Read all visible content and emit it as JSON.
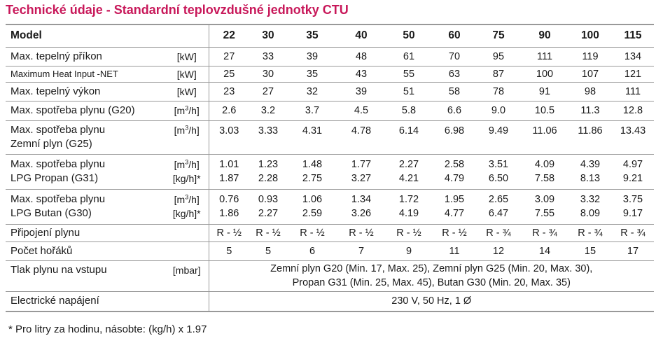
{
  "title": "Technické údaje - Standardní teplovzdušné jednotky CTU",
  "header": {
    "label": "Model",
    "models": [
      "22",
      "30",
      "35",
      "40",
      "50",
      "60",
      "75",
      "90",
      "100",
      "115"
    ]
  },
  "rows": [
    {
      "label": "Max. tepelný příkon",
      "unit": "[kW]",
      "values": [
        "27",
        "33",
        "39",
        "48",
        "61",
        "70",
        "95",
        "111",
        "119",
        "134"
      ]
    },
    {
      "label": "Maximum Heat Input -NET",
      "unit": "[kW]",
      "values": [
        "25",
        "30",
        "35",
        "43",
        "55",
        "63",
        "87",
        "100",
        "107",
        "121"
      ]
    },
    {
      "label": "Max. tepelný výkon",
      "unit": "[kW]",
      "values": [
        "23",
        "27",
        "32",
        "39",
        "51",
        "58",
        "78",
        "91",
        "98",
        "111"
      ]
    },
    {
      "label": "Max. spotřeba plynu (G20)",
      "unit_pre": "[m",
      "unit_sup": "3",
      "unit_post": "/h]",
      "values": [
        "2.6",
        "3.2",
        "3.7",
        "4.5",
        "5.8",
        "6.6",
        "9.0",
        "10.5",
        "11.3",
        "12.8"
      ]
    },
    {
      "label_line1": "Max. spotřeba plynu",
      "label_line2": "Zemní plyn (G25)",
      "unit_pre": "[m",
      "unit_sup": "3",
      "unit_post": "/h]",
      "values": [
        "3.03",
        "3.33",
        "4.31",
        "4.78",
        "6.14",
        "6.98",
        "9.49",
        "11.06",
        "11.86",
        "13.43"
      ]
    },
    {
      "label_line1": "Max. spotřeba plynu",
      "label_line2": "LPG Propan (G31)",
      "unit_pre": "[m",
      "unit_sup": "3",
      "unit_post": "/h]",
      "unit2": "[kg/h]*",
      "values": [
        "1.01",
        "1.23",
        "1.48",
        "1.77",
        "2.27",
        "2.58",
        "3.51",
        "4.09",
        "4.39",
        "4.97"
      ],
      "values2": [
        "1.87",
        "2.28",
        "2.75",
        "3.27",
        "4.21",
        "4.79",
        "6.50",
        "7.58",
        "8.13",
        "9.21"
      ]
    },
    {
      "label_line1": "Max. spotřeba plynu",
      "label_line2": "LPG Butan (G30)",
      "unit_pre": "[m",
      "unit_sup": "3",
      "unit_post": "/h]",
      "unit2": "[kg/h]*",
      "values": [
        "0.76",
        "0.93",
        "1.06",
        "1.34",
        "1.72",
        "1.95",
        "2.65",
        "3.09",
        "3.32",
        "3.75"
      ],
      "values2": [
        "1.86",
        "2.27",
        "2.59",
        "3.26",
        "4.19",
        "4.77",
        "6.47",
        "7.55",
        "8.09",
        "9.17"
      ]
    },
    {
      "label": "Připojení plynu",
      "unit": "",
      "values": [
        "R - ½",
        "R - ½",
        "R - ½",
        "R - ½",
        "R - ½",
        "R - ½",
        "R - ¾",
        "R - ¾",
        "R - ¾",
        "R - ¾"
      ]
    },
    {
      "label": "Počet hořáků",
      "unit": "",
      "values": [
        "5",
        "5",
        "6",
        "7",
        "9",
        "11",
        "12",
        "14",
        "15",
        "17"
      ]
    },
    {
      "label": "Tlak plynu na vstupu",
      "unit": "[mbar]",
      "line1": "Zemní plyn G20  (Min. 17, Max. 25), Zemní plyn G25 (Min. 20, Max. 30),",
      "line2": "Propan G31 (Min. 25, Max. 45), Butan G30 (Min. 20, Max. 35)"
    },
    {
      "label": "Electrické napájení",
      "unit": "",
      "text": "230 V, 50 Hz, 1 Ø"
    }
  ],
  "footnote": "* Pro litry za hodinu, násobte: (kg/h) x 1.97"
}
